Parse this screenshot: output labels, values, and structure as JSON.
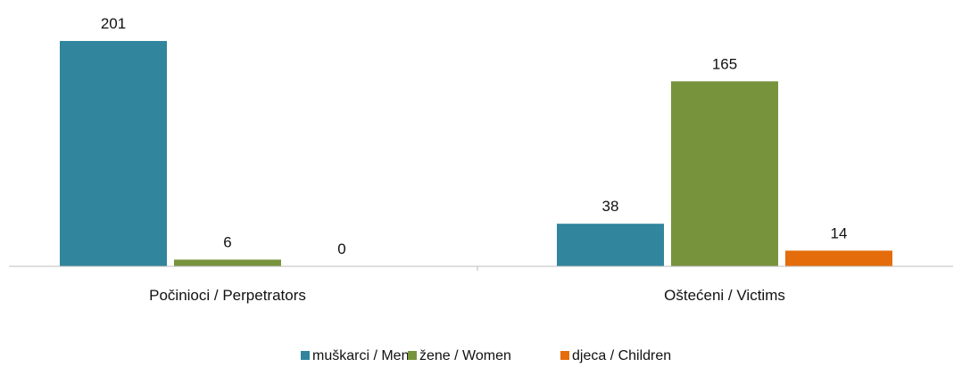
{
  "chart_data": {
    "type": "bar",
    "categories": [
      "Počinioci / Perpetrators",
      "Oštećeni / Victims"
    ],
    "series": [
      {
        "name": "muškarci / Men",
        "values": [
          201,
          38
        ],
        "color": "#31859c"
      },
      {
        "name": "žene / Women",
        "values": [
          6,
          165
        ],
        "color": "#77933c"
      },
      {
        "name": "djeca / Children",
        "values": [
          0,
          14
        ],
        "color": "#e46c0a"
      }
    ],
    "ylim": [
      0,
      201
    ],
    "grid": false,
    "legend": "bottom"
  }
}
